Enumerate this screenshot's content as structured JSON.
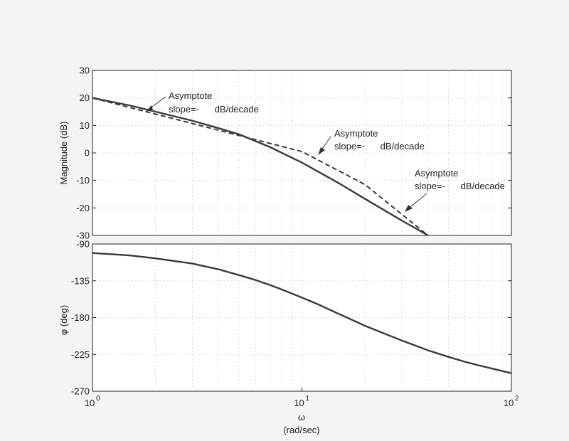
{
  "chart_data": [
    {
      "type": "line",
      "ylabel": "Magnitude (dB)",
      "xscale": "log",
      "xlim": [
        1,
        100
      ],
      "ylim": [
        -30,
        30
      ],
      "yticks": [
        "30",
        "20",
        "10",
        "0",
        "-10",
        "-20",
        "-30"
      ],
      "grid": true,
      "series": [
        {
          "style": "solid",
          "x": [
            1,
            1.5,
            2,
            3,
            4,
            5,
            7,
            10,
            15,
            20,
            30,
            40
          ],
          "y": [
            20,
            17.3,
            15,
            11.7,
            9,
            6.8,
            2.2,
            -3.5,
            -11,
            -16.7,
            -24.6,
            -30.2
          ]
        },
        {
          "style": "dashed",
          "x": [
            1,
            10,
            20,
            40
          ],
          "y": [
            20,
            0.5,
            -11.5,
            -30
          ]
        }
      ],
      "annotations": [
        {
          "line1": "Asymptote",
          "line2": "slope=-      dB/decade"
        },
        {
          "line1": "Asymptote",
          "line2": "slope=-      dB/decade"
        },
        {
          "line1": "Asymptote",
          "line2": "slope=-      dB/decade"
        }
      ]
    },
    {
      "type": "line",
      "ylabel": "φ (deg)",
      "xlabel_line1": "ω",
      "xlabel_line2": "(rad/sec)",
      "xscale": "log",
      "xlim": [
        1,
        100
      ],
      "ylim": [
        -270,
        -90
      ],
      "yticks": [
        "-90",
        "-135",
        "-180",
        "-225",
        "-270"
      ],
      "xticks": [
        "10",
        "10",
        "10"
      ],
      "xtick_exponents": [
        "0",
        "1",
        "2"
      ],
      "grid": true,
      "series": [
        {
          "style": "solid",
          "x": [
            1,
            1.5,
            2,
            3,
            4,
            5,
            6,
            7,
            8,
            10,
            12,
            15,
            20,
            25,
            30,
            40,
            50,
            60,
            70,
            80,
            100
          ],
          "y": [
            -101,
            -104,
            -107.5,
            -114,
            -121,
            -128,
            -134,
            -140,
            -145.5,
            -155.5,
            -164,
            -175.5,
            -190,
            -200,
            -208,
            -220,
            -228,
            -234,
            -238.5,
            -242,
            -248
          ]
        }
      ]
    }
  ]
}
